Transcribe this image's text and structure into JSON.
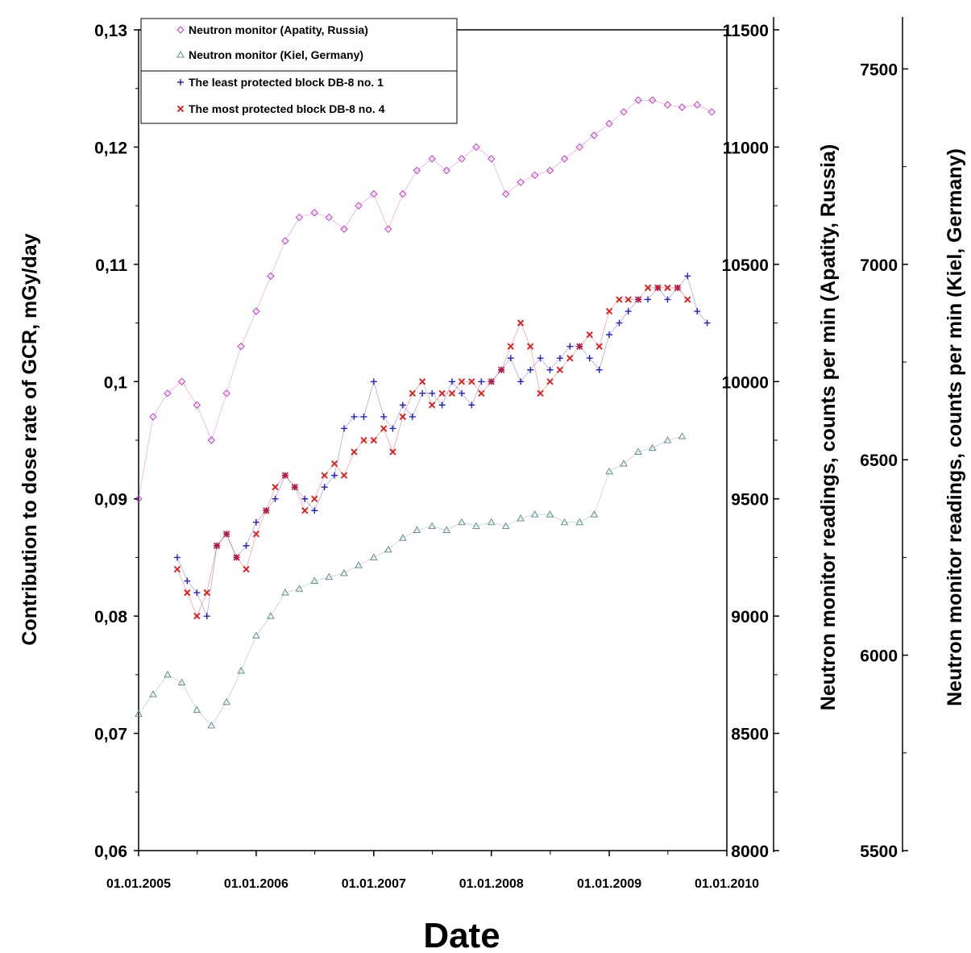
{
  "chart_data": {
    "type": "scatter",
    "xlabel": "Date",
    "ylabel": "Contribution to dose rate of GCR, mGy/day",
    "y2label": "Neutron monitor readings, counts per min (Apatity, Russia)",
    "y3label": "Neutron monitor readings, counts per min (Kiel, Germany)",
    "xlim": [
      "2005-01-01",
      "2010-01-01"
    ],
    "ylim": [
      0.06,
      0.13
    ],
    "y2lim": [
      8000,
      11500
    ],
    "y3lim": [
      5500,
      7600
    ],
    "x_tick_labels": [
      "01.01.2005",
      "01.01.2006",
      "01.01.2007",
      "01.01.2008",
      "01.01.2009",
      "01.01.2010"
    ],
    "y_tick_labels": [
      "0,06",
      "0,07",
      "0,08",
      "0,09",
      "0,1",
      "0,11",
      "0,12",
      "0,13"
    ],
    "y2_tick_labels": [
      "8000",
      "8500",
      "9000",
      "9500",
      "10000",
      "10500",
      "11000",
      "11500"
    ],
    "y3_tick_labels": [
      "5500",
      "6000",
      "6500",
      "7000",
      "7500"
    ],
    "legend": {
      "position": "top-left"
    },
    "series": [
      {
        "name": "Neutron monitor (Apatity, Russia)",
        "axis": "y2",
        "marker": "diamond",
        "color": "#cc33cc",
        "x": [
          "2005-01-01",
          "2005-02-15",
          "2005-04-01",
          "2005-05-15",
          "2005-07-01",
          "2005-08-15",
          "2005-10-01",
          "2005-11-15",
          "2006-01-01",
          "2006-02-15",
          "2006-04-01",
          "2006-05-15",
          "2006-07-01",
          "2006-08-15",
          "2006-10-01",
          "2006-11-15",
          "2007-01-01",
          "2007-02-15",
          "2007-04-01",
          "2007-05-15",
          "2007-07-01",
          "2007-08-15",
          "2007-10-01",
          "2007-11-15",
          "2008-01-01",
          "2008-02-15",
          "2008-04-01",
          "2008-05-15",
          "2008-07-01",
          "2008-08-15",
          "2008-10-01",
          "2008-11-15",
          "2009-01-01",
          "2009-02-15",
          "2009-04-01",
          "2009-05-15",
          "2009-07-01",
          "2009-08-15",
          "2009-10-01",
          "2009-11-15"
        ],
        "y": [
          9500,
          9850,
          9950,
          10000,
          9900,
          9750,
          9950,
          10150,
          10300,
          10450,
          10600,
          10700,
          10720,
          10700,
          10650,
          10750,
          10800,
          10650,
          10800,
          10900,
          10950,
          10900,
          10950,
          11000,
          10950,
          10800,
          10850,
          10880,
          10900,
          10950,
          11000,
          11050,
          11100,
          11150,
          11200,
          11200,
          11180,
          11170,
          11180,
          11150
        ]
      },
      {
        "name": "Neutron monitor (Kiel, Germany)",
        "axis": "y3",
        "marker": "triangle",
        "color": "#5f9090",
        "x": [
          "2005-01-01",
          "2005-02-15",
          "2005-04-01",
          "2005-05-15",
          "2005-07-01",
          "2005-08-15",
          "2005-10-01",
          "2005-11-15",
          "2006-01-01",
          "2006-02-15",
          "2006-04-01",
          "2006-05-15",
          "2006-07-01",
          "2006-08-15",
          "2006-10-01",
          "2006-11-15",
          "2007-01-01",
          "2007-02-15",
          "2007-04-01",
          "2007-05-15",
          "2007-07-01",
          "2007-08-15",
          "2007-10-01",
          "2007-11-15",
          "2008-01-01",
          "2008-02-15",
          "2008-04-01",
          "2008-05-15",
          "2008-07-01",
          "2008-08-15",
          "2008-10-01",
          "2008-11-15",
          "2009-01-01",
          "2009-02-15",
          "2009-04-01",
          "2009-05-15",
          "2009-07-01",
          "2009-08-15"
        ],
        "y": [
          5850,
          5900,
          5950,
          5930,
          5860,
          5820,
          5880,
          5960,
          6050,
          6100,
          6160,
          6170,
          6190,
          6200,
          6210,
          6230,
          6250,
          6270,
          6300,
          6320,
          6330,
          6320,
          6340,
          6330,
          6340,
          6330,
          6350,
          6360,
          6360,
          6340,
          6340,
          6360,
          6470,
          6490,
          6520,
          6530,
          6550,
          6560
        ]
      },
      {
        "name": "The least protected block DB-8 no. 1",
        "axis": "y",
        "marker": "plus",
        "color": "#2222cc",
        "x": [
          "2005-05-01",
          "2005-06-01",
          "2005-07-01",
          "2005-08-01",
          "2005-09-01",
          "2005-10-01",
          "2005-11-01",
          "2005-12-01",
          "2006-01-01",
          "2006-02-01",
          "2006-03-01",
          "2006-04-01",
          "2006-05-01",
          "2006-06-01",
          "2006-07-01",
          "2006-08-01",
          "2006-09-01",
          "2006-10-01",
          "2006-11-01",
          "2006-12-01",
          "2007-01-01",
          "2007-02-01",
          "2007-03-01",
          "2007-04-01",
          "2007-05-01",
          "2007-06-01",
          "2007-07-01",
          "2007-08-01",
          "2007-09-01",
          "2007-10-01",
          "2007-11-01",
          "2007-12-01",
          "2008-01-01",
          "2008-02-01",
          "2008-03-01",
          "2008-04-01",
          "2008-05-01",
          "2008-06-01",
          "2008-07-01",
          "2008-08-01",
          "2008-09-01",
          "2008-10-01",
          "2008-11-01",
          "2008-12-01",
          "2009-01-01",
          "2009-02-01",
          "2009-03-01",
          "2009-04-01",
          "2009-05-01",
          "2009-06-01",
          "2009-07-01",
          "2009-08-01",
          "2009-09-01",
          "2009-10-01",
          "2009-11-01"
        ],
        "y": [
          0.085,
          0.083,
          0.082,
          0.08,
          0.086,
          0.087,
          0.085,
          0.086,
          0.088,
          0.089,
          0.09,
          0.092,
          0.091,
          0.09,
          0.089,
          0.091,
          0.092,
          0.096,
          0.097,
          0.097,
          0.1,
          0.097,
          0.096,
          0.098,
          0.097,
          0.099,
          0.099,
          0.098,
          0.1,
          0.099,
          0.098,
          0.1,
          0.1,
          0.101,
          0.102,
          0.1,
          0.101,
          0.102,
          0.101,
          0.102,
          0.103,
          0.103,
          0.102,
          0.101,
          0.104,
          0.105,
          0.106,
          0.107,
          0.107,
          0.108,
          0.107,
          0.108,
          0.109,
          0.106,
          0.105
        ]
      },
      {
        "name": "The most protected block DB-8 no. 4",
        "axis": "y",
        "marker": "cross",
        "color": "#ee1111",
        "x": [
          "2005-05-01",
          "2005-06-01",
          "2005-07-01",
          "2005-08-01",
          "2005-09-01",
          "2005-10-01",
          "2005-11-01",
          "2005-12-01",
          "2006-01-01",
          "2006-02-01",
          "2006-03-01",
          "2006-04-01",
          "2006-05-01",
          "2006-06-01",
          "2006-07-01",
          "2006-08-01",
          "2006-09-01",
          "2006-10-01",
          "2006-11-01",
          "2006-12-01",
          "2007-01-01",
          "2007-02-01",
          "2007-03-01",
          "2007-04-01",
          "2007-05-01",
          "2007-06-01",
          "2007-07-01",
          "2007-08-01",
          "2007-09-01",
          "2007-10-01",
          "2007-11-01",
          "2007-12-01",
          "2008-01-01",
          "2008-02-01",
          "2008-03-01",
          "2008-04-01",
          "2008-05-01",
          "2008-06-01",
          "2008-07-01",
          "2008-08-01",
          "2008-09-01",
          "2008-10-01",
          "2008-11-01",
          "2008-12-01",
          "2009-01-01",
          "2009-02-01",
          "2009-03-01",
          "2009-04-01",
          "2009-05-01",
          "2009-06-01",
          "2009-07-01",
          "2009-08-01",
          "2009-09-01"
        ],
        "y": [
          0.084,
          0.082,
          0.08,
          0.082,
          0.086,
          0.087,
          0.085,
          0.084,
          0.087,
          0.089,
          0.091,
          0.092,
          0.091,
          0.089,
          0.09,
          0.092,
          0.093,
          0.092,
          0.094,
          0.095,
          0.095,
          0.096,
          0.094,
          0.097,
          0.099,
          0.1,
          0.098,
          0.099,
          0.099,
          0.1,
          0.1,
          0.099,
          0.1,
          0.101,
          0.103,
          0.105,
          0.103,
          0.099,
          0.1,
          0.101,
          0.102,
          0.103,
          0.104,
          0.103,
          0.106,
          0.107,
          0.107,
          0.107,
          0.108,
          0.108,
          0.108,
          0.108,
          0.107
        ]
      }
    ]
  }
}
